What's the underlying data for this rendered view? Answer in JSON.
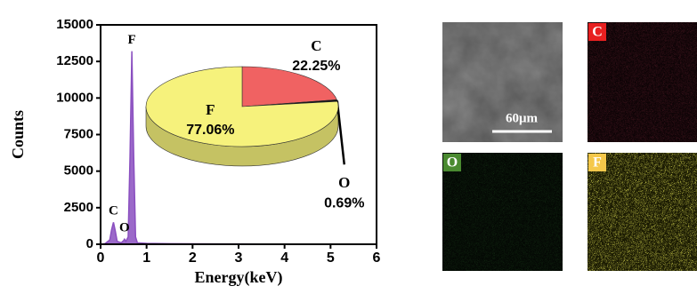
{
  "chart_data": [
    {
      "type": "line",
      "xlabel": "Energy(keV)",
      "ylabel": "Counts",
      "x": [
        0,
        0.1,
        0.2,
        0.24,
        0.28,
        0.32,
        0.36,
        0.45,
        0.5,
        0.52,
        0.55,
        0.6,
        0.64,
        0.68,
        0.72,
        0.76,
        0.8,
        1.0,
        1.5,
        2,
        3,
        4,
        5,
        6
      ],
      "values": [
        0,
        50,
        300,
        1000,
        1500,
        900,
        200,
        100,
        250,
        350,
        200,
        500,
        6000,
        13200,
        6000,
        500,
        100,
        60,
        40,
        30,
        20,
        10,
        5,
        0
      ],
      "color": "#8a4fc0",
      "xlim": [
        0,
        6
      ],
      "xticks": [
        0,
        1,
        2,
        3,
        4,
        5,
        6
      ],
      "ylim": [
        0,
        15000
      ],
      "yticks": [
        0,
        2500,
        5000,
        7500,
        10000,
        12500,
        15000
      ],
      "annotations": [
        {
          "text": "F",
          "x": 0.68
        },
        {
          "text": "C",
          "x": 0.28
        },
        {
          "text": "O",
          "x": 0.52
        }
      ]
    },
    {
      "type": "pie",
      "categories": [
        "C",
        "O",
        "F"
      ],
      "values": [
        22.25,
        0.69,
        77.06
      ],
      "value_labels": [
        "22.25%",
        "0.69%",
        "77.06%"
      ],
      "colors": [
        "#f06262",
        "#111111",
        "#f6f27c"
      ]
    }
  ],
  "maps": [
    {
      "scale_bar": "60μm"
    },
    {
      "label": "C",
      "color": "#e82020"
    },
    {
      "label": "O",
      "color": "#4a8a30"
    },
    {
      "label": "F",
      "color": "#f5c84a"
    }
  ]
}
